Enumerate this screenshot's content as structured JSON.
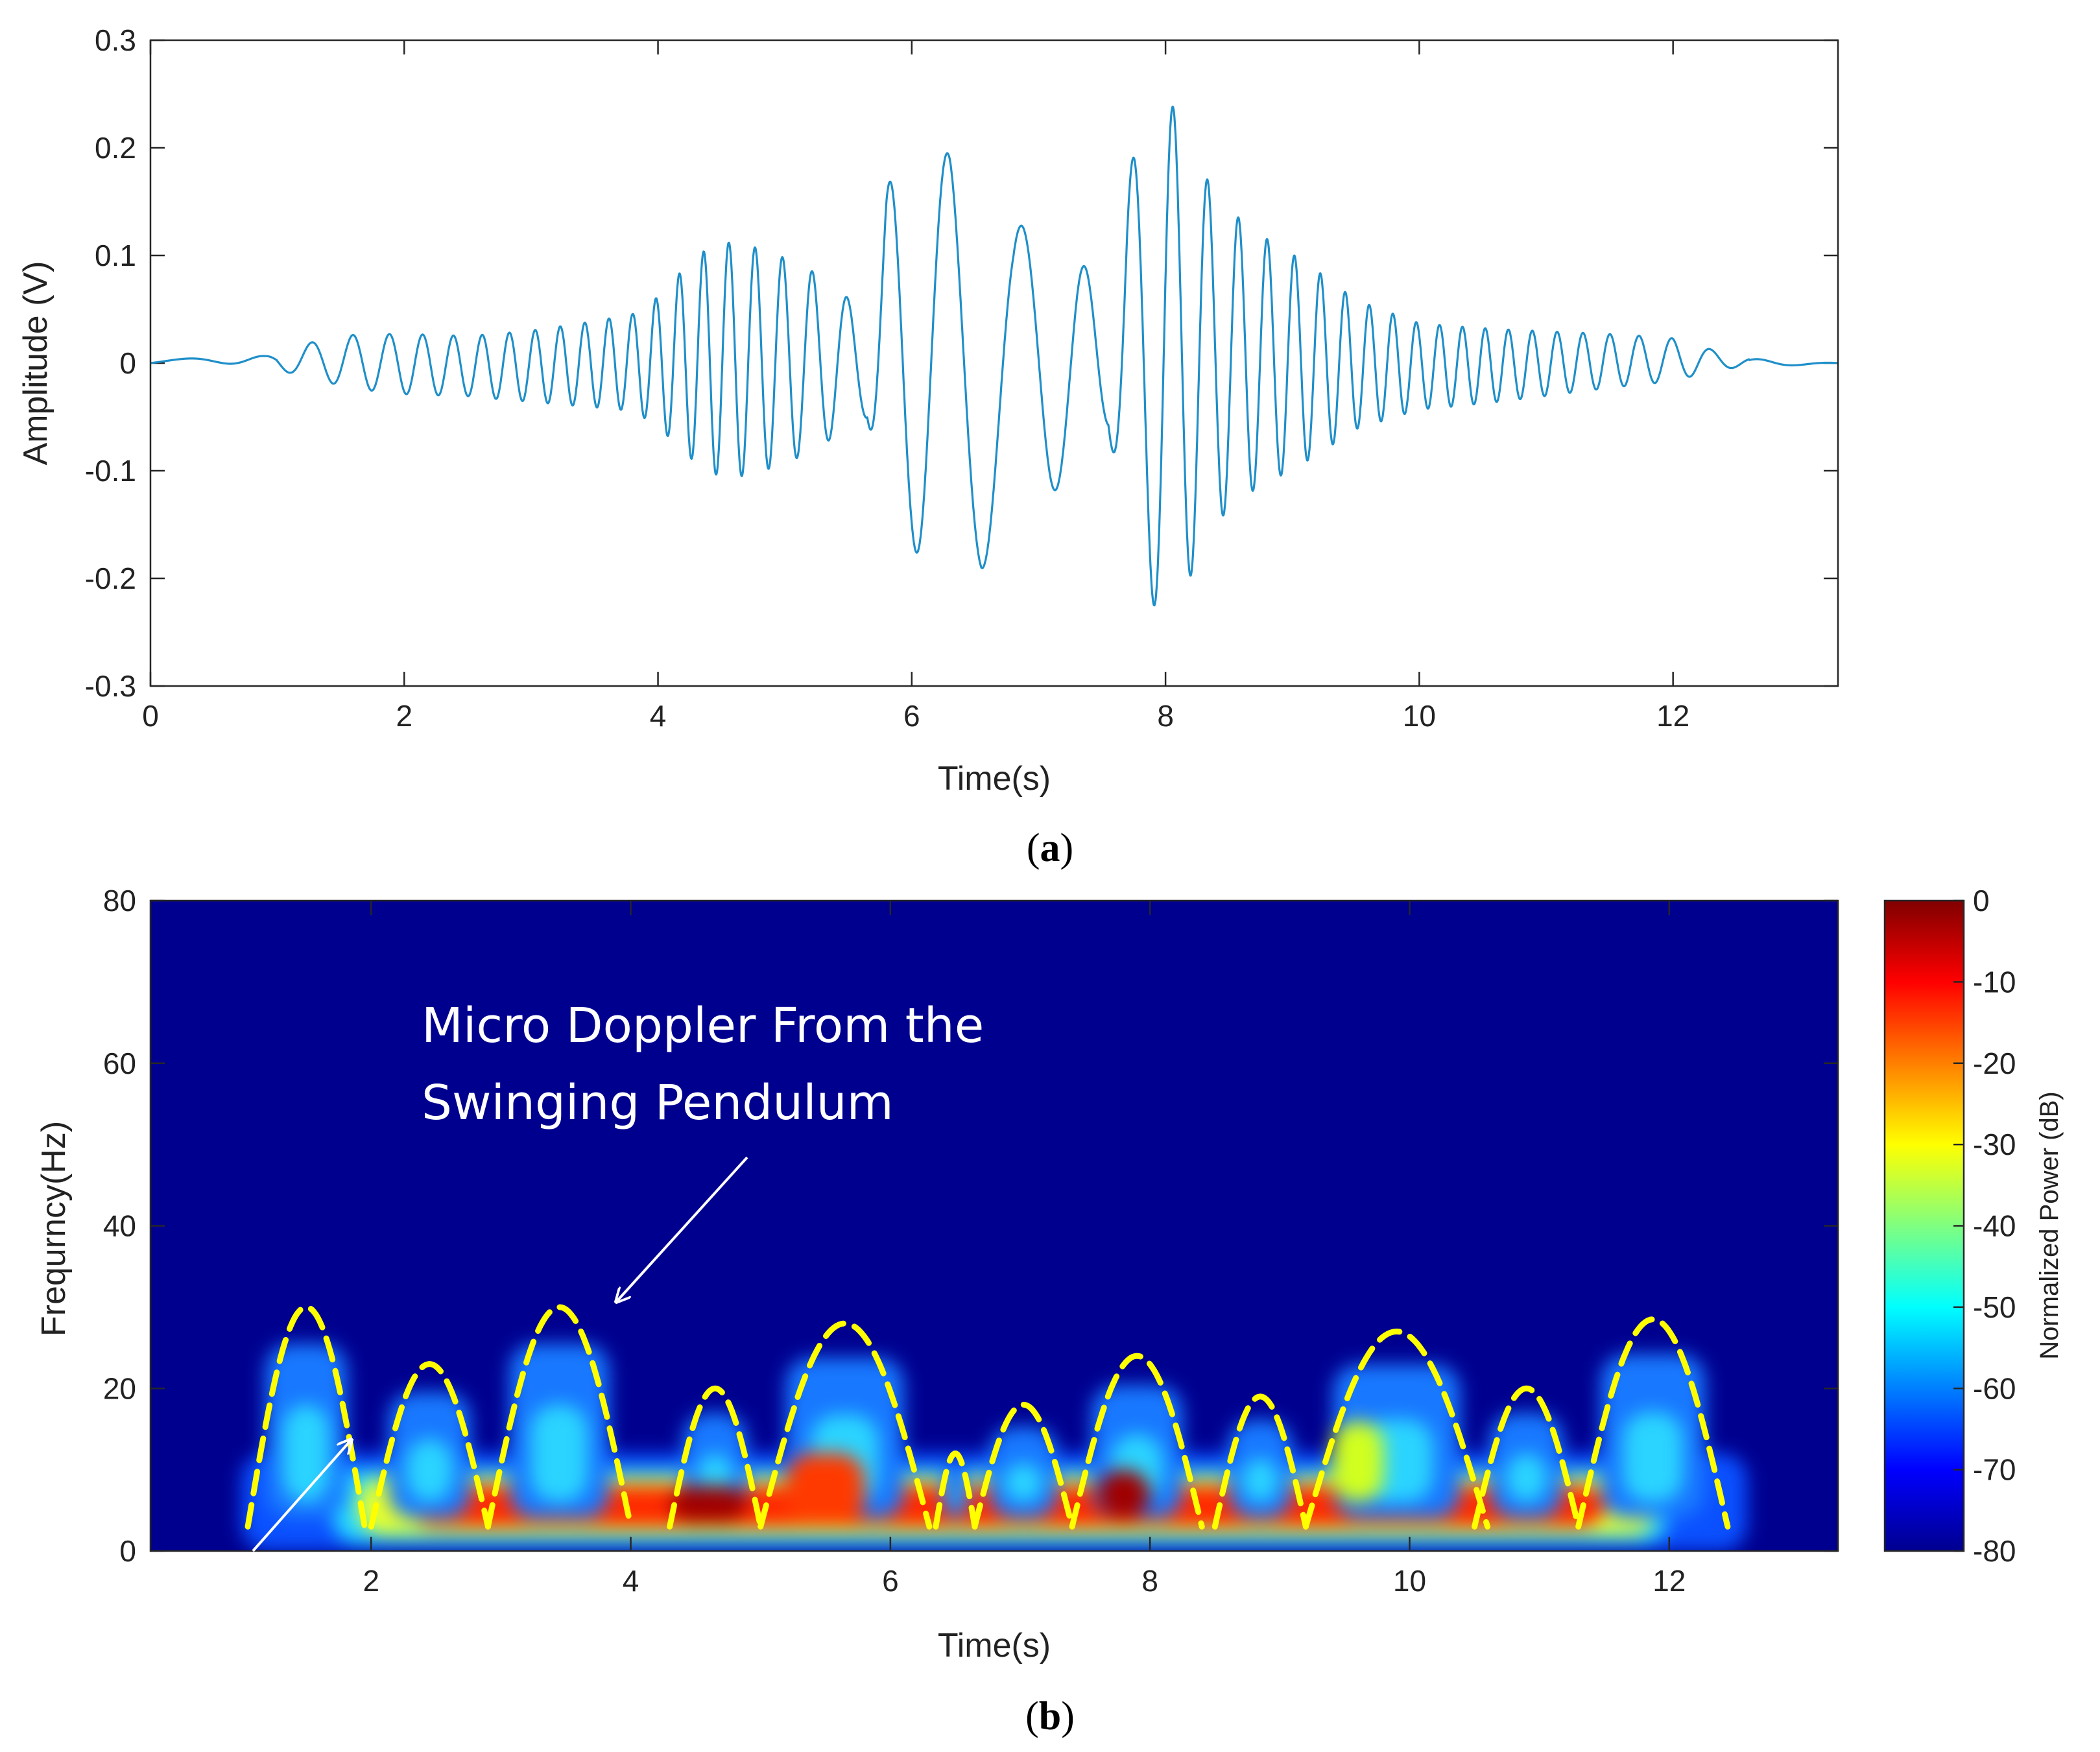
{
  "chart_data": [
    {
      "id": "a",
      "type": "line",
      "title": "",
      "xlabel": "Time(s)",
      "ylabel": "Amplitude (V)",
      "xlim": [
        0,
        13.3
      ],
      "ylim": [
        -0.3,
        0.3
      ],
      "xticks": [
        0,
        2,
        4,
        6,
        8,
        10,
        12
      ],
      "yticks": [
        -0.3,
        -0.2,
        -0.1,
        0,
        0.1,
        0.2,
        0.3
      ],
      "xtick_labels": [
        "0",
        "2",
        "4",
        "6",
        "8",
        "10",
        "12"
      ],
      "ytick_labels": [
        "-0.3",
        "-0.2",
        "-0.1",
        "0",
        "0.1",
        "0.2",
        "0.3"
      ],
      "series": [
        {
          "name": "Amplitude",
          "color": "#1f8fc9",
          "envelope_knots": [
            [
              0,
              0.004
            ],
            [
              0.9,
              0.006
            ],
            [
              1.2,
              0.015
            ],
            [
              1.6,
              0.025
            ],
            [
              2.0,
              0.028
            ],
            [
              2.5,
              0.028
            ],
            [
              3.0,
              0.033
            ],
            [
              3.5,
              0.04
            ],
            [
              3.8,
              0.045
            ],
            [
              4.0,
              0.06
            ],
            [
              4.2,
              0.085
            ],
            [
              4.4,
              0.105
            ],
            [
              4.6,
              0.11
            ],
            [
              4.9,
              0.1
            ],
            [
              5.2,
              0.085
            ],
            [
              5.5,
              0.06
            ],
            [
              5.65,
              0.05
            ],
            [
              5.8,
              0.17
            ],
            [
              6.0,
              0.17
            ],
            [
              6.3,
              0.2
            ],
            [
              6.55,
              0.19
            ],
            [
              6.8,
              0.13
            ],
            [
              7.0,
              0.13
            ],
            [
              7.3,
              0.1
            ],
            [
              7.55,
              0.06
            ],
            [
              7.7,
              0.18
            ],
            [
              7.8,
              0.2
            ],
            [
              8.0,
              0.25
            ],
            [
              8.2,
              0.2
            ],
            [
              8.4,
              0.15
            ],
            [
              8.7,
              0.12
            ],
            [
              9.0,
              0.1
            ],
            [
              9.2,
              0.085
            ],
            [
              9.5,
              0.06
            ],
            [
              10.0,
              0.04
            ],
            [
              10.5,
              0.035
            ],
            [
              11.0,
              0.03
            ],
            [
              11.5,
              0.025
            ],
            [
              12.0,
              0.02
            ],
            [
              12.3,
              0.01
            ],
            [
              12.6,
              0.004
            ],
            [
              13.3,
              0.003
            ]
          ],
          "frequency_knots": [
            [
              0,
              0.6
            ],
            [
              1.2,
              2.8
            ],
            [
              2.0,
              3.8
            ],
            [
              3.0,
              5.0
            ],
            [
              4.0,
              5.5
            ],
            [
              5.0,
              4.5
            ],
            [
              5.8,
              2.6
            ],
            [
              6.5,
              1.6
            ],
            [
              7.0,
              1.8
            ],
            [
              7.8,
              3.0
            ],
            [
              8.5,
              4.2
            ],
            [
              9.5,
              5.3
            ],
            [
              10.5,
              5.6
            ],
            [
              11.5,
              4.6
            ],
            [
              12.3,
              3.0
            ],
            [
              13.3,
              1.0
            ]
          ]
        }
      ]
    },
    {
      "id": "b",
      "type": "heatmap",
      "title": "",
      "xlabel": "Time(s)",
      "ylabel": "Frequrncy(Hz)",
      "xlim": [
        0.3,
        13.3
      ],
      "ylim": [
        0,
        80
      ],
      "xticks": [
        2,
        4,
        6,
        8,
        10,
        12
      ],
      "yticks": [
        0,
        20,
        40,
        60,
        80
      ],
      "xtick_labels": [
        "2",
        "4",
        "6",
        "8",
        "10",
        "12"
      ],
      "ytick_labels": [
        "0",
        "20",
        "40",
        "60",
        "80"
      ],
      "colorbar": {
        "label": "Normalized Power (dB)",
        "range": [
          -80,
          0
        ],
        "ticks": [
          0,
          -10,
          -20,
          -30,
          -40,
          -50,
          -60,
          -70,
          -80
        ],
        "tick_labels": [
          "0",
          "-10",
          "-20",
          "-30",
          "-40",
          "-50",
          "-60",
          "-70",
          "-80"
        ],
        "colormap": "jet"
      },
      "micro_doppler_peaks": [
        {
          "start": 1.05,
          "end": 1.95,
          "peak_hz": 30
        },
        {
          "start": 2.0,
          "end": 2.9,
          "peak_hz": 23
        },
        {
          "start": 2.9,
          "end": 4.0,
          "peak_hz": 30
        },
        {
          "start": 4.3,
          "end": 5.0,
          "peak_hz": 20
        },
        {
          "start": 5.0,
          "end": 6.3,
          "peak_hz": 28
        },
        {
          "start": 6.35,
          "end": 6.65,
          "peak_hz": 12
        },
        {
          "start": 6.65,
          "end": 7.4,
          "peak_hz": 18
        },
        {
          "start": 7.4,
          "end": 8.4,
          "peak_hz": 24
        },
        {
          "start": 8.5,
          "end": 9.2,
          "peak_hz": 19
        },
        {
          "start": 9.2,
          "end": 10.6,
          "peak_hz": 27
        },
        {
          "start": 10.5,
          "end": 11.3,
          "peak_hz": 20
        },
        {
          "start": 11.3,
          "end": 12.45,
          "peak_hz": 28.5
        }
      ],
      "dashed_line_color": "#ffff00",
      "annotation": {
        "line1": "Micro Doppler From the",
        "line2": "Swinging Pendulum"
      }
    }
  ],
  "panel_labels": {
    "a_open": "(",
    "a_letter": "a",
    "a_close": ")",
    "b_open": "(",
    "b_letter": "b",
    "b_close": ")"
  }
}
